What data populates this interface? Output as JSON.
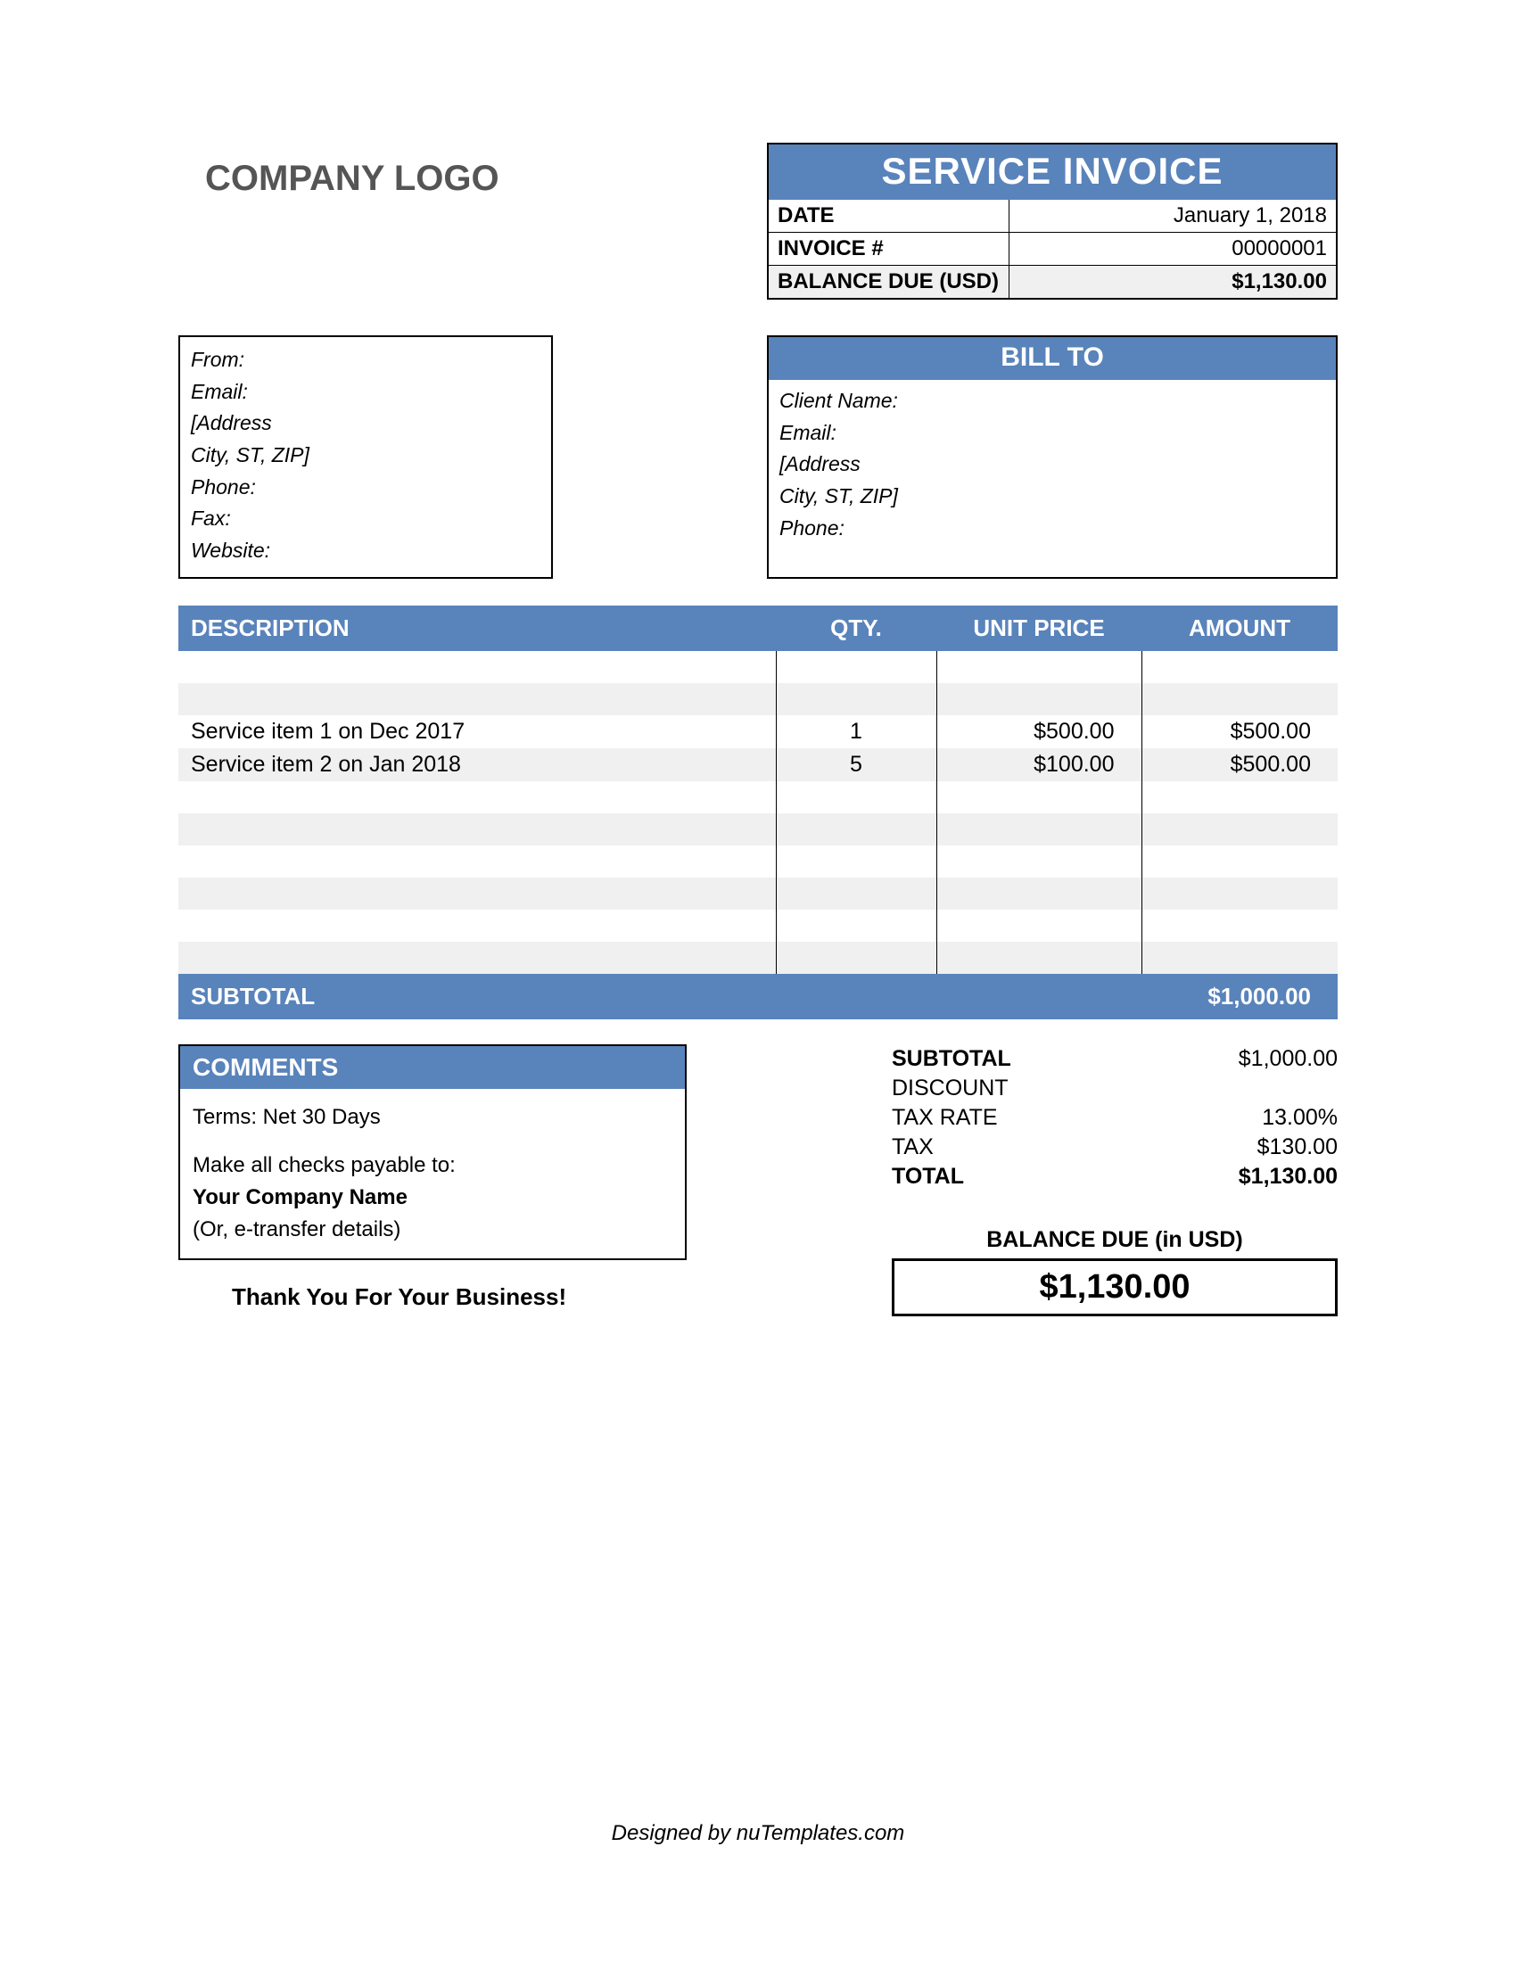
{
  "colors": {
    "accent": "#5983bb",
    "stripe": "#f0f0f0",
    "border": "#000000",
    "text_muted": "#555555"
  },
  "header": {
    "logo_text": "COMPANY LOGO",
    "title": "SERVICE INVOICE",
    "date_label": "DATE",
    "date_value": "January 1, 2018",
    "invoice_no_label": "INVOICE #",
    "invoice_no_value": "00000001",
    "balance_due_label": "BALANCE DUE (USD)",
    "balance_due_value": "$1,130.00"
  },
  "from": {
    "from_label": "From:",
    "email_label": "Email:",
    "address_label": "[Address",
    "city_label": "City, ST, ZIP]",
    "phone_label": "Phone:",
    "fax_label": "Fax:",
    "website_label": "Website:"
  },
  "bill_to": {
    "title": "BILL TO",
    "client_label": "Client Name:",
    "email_label": "Email:",
    "address_label": "[Address",
    "city_label": "City, ST, ZIP]",
    "phone_label": "Phone:"
  },
  "items": {
    "col_desc": "DESCRIPTION",
    "col_qty": "QTY.",
    "col_unit": "UNIT PRICE",
    "col_amount": "AMOUNT",
    "rows": [
      {
        "desc": "",
        "qty": "",
        "unit": "",
        "amount": ""
      },
      {
        "desc": "",
        "qty": "",
        "unit": "",
        "amount": ""
      },
      {
        "desc": "Service item 1 on Dec 2017",
        "qty": "1",
        "unit": "$500.00",
        "amount": "$500.00"
      },
      {
        "desc": "Service item 2 on Jan 2018",
        "qty": "5",
        "unit": "$100.00",
        "amount": "$500.00"
      },
      {
        "desc": "",
        "qty": "",
        "unit": "",
        "amount": ""
      },
      {
        "desc": "",
        "qty": "",
        "unit": "",
        "amount": ""
      },
      {
        "desc": "",
        "qty": "",
        "unit": "",
        "amount": ""
      },
      {
        "desc": "",
        "qty": "",
        "unit": "",
        "amount": ""
      },
      {
        "desc": "",
        "qty": "",
        "unit": "",
        "amount": ""
      },
      {
        "desc": "",
        "qty": "",
        "unit": "",
        "amount": ""
      }
    ],
    "subtotal_label": "SUBTOTAL",
    "subtotal_value": "$1,000.00"
  },
  "comments": {
    "title": "COMMENTS",
    "terms": "Terms: Net 30 Days",
    "payable_intro": "Make all checks payable to:",
    "payable_name": "Your Company Name",
    "etransfer": "(Or, e-transfer details)"
  },
  "totals": {
    "subtotal_label": "SUBTOTAL",
    "subtotal_value": "$1,000.00",
    "discount_label": "DISCOUNT",
    "discount_value": "",
    "taxrate_label": "TAX RATE",
    "taxrate_value": "13.00%",
    "tax_label": "TAX",
    "tax_value": "$130.00",
    "total_label": "TOTAL",
    "total_value": "$1,130.00",
    "balance_due_label": "BALANCE DUE (in USD)",
    "balance_due_value": "$1,130.00"
  },
  "thanks": "Thank You For Your Business!",
  "footer": "Designed by nuTemplates.com"
}
